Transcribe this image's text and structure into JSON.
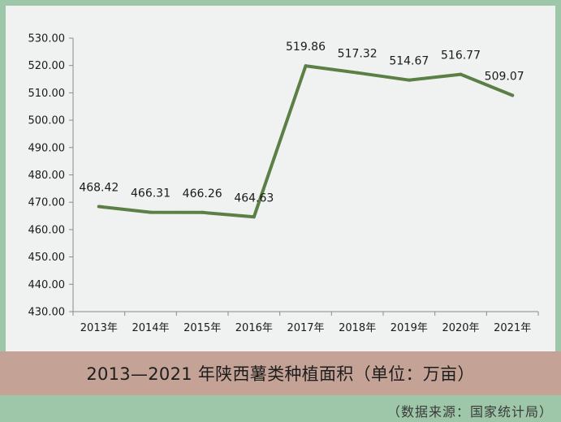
{
  "chart_data": {
    "type": "line",
    "categories": [
      "2013年",
      "2014年",
      "2015年",
      "2016年",
      "2017年",
      "2018年",
      "2019年",
      "2020年",
      "2021年"
    ],
    "values": [
      468.42,
      466.31,
      466.26,
      464.63,
      519.86,
      517.32,
      514.67,
      516.77,
      509.07
    ],
    "data_labels": [
      "468.42",
      "466.31",
      "466.26",
      "464.63",
      "519.86",
      "517.32",
      "514.67",
      "516.77",
      "509.07"
    ],
    "ylim": [
      430,
      530
    ],
    "yticks": [
      "430.00",
      "440.00",
      "450.00",
      "460.00",
      "470.00",
      "480.00",
      "490.00",
      "500.00",
      "510.00",
      "520.00",
      "530.00"
    ],
    "line_color": "#5b7f45",
    "grid": false,
    "title": "2013—2021 年陕西薯类种植面积（单位：万亩）",
    "xlabel": "",
    "ylabel": ""
  },
  "source": "（数据来源：国家统计局）"
}
